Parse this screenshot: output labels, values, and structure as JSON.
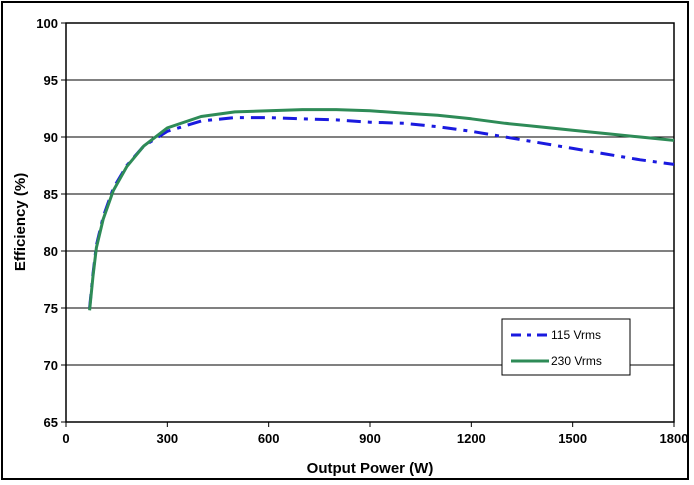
{
  "chart_data": {
    "type": "line",
    "title": "",
    "xlabel": "Output Power (W)",
    "ylabel": "Efficiency (%)",
    "xlim": [
      0,
      1800
    ],
    "ylim": [
      65,
      100
    ],
    "xticks": [
      0,
      300,
      600,
      900,
      1200,
      1500,
      1800
    ],
    "yticks": [
      65,
      70,
      75,
      80,
      85,
      90,
      95,
      100
    ],
    "x_tick_labels": [
      "0",
      "300",
      "600",
      "900",
      "1200",
      "1500",
      "1800"
    ],
    "y_tick_labels": [
      "65",
      "70",
      "75",
      "80",
      "85",
      "90",
      "95",
      "100"
    ],
    "grid": "horizontal",
    "legend_position": "bottom-right",
    "series": [
      {
        "name": "115 Vrms",
        "color": "#1a1adf",
        "style": "dash-dot",
        "points": [
          [
            70,
            75.0
          ],
          [
            80,
            78.0
          ],
          [
            90,
            80.5
          ],
          [
            110,
            83.0
          ],
          [
            140,
            85.5
          ],
          [
            180,
            87.5
          ],
          [
            230,
            89.2
          ],
          [
            300,
            90.5
          ],
          [
            400,
            91.4
          ],
          [
            500,
            91.7
          ],
          [
            600,
            91.7
          ],
          [
            700,
            91.6
          ],
          [
            800,
            91.5
          ],
          [
            900,
            91.3
          ],
          [
            1000,
            91.2
          ],
          [
            1100,
            90.9
          ],
          [
            1200,
            90.5
          ],
          [
            1300,
            90.0
          ],
          [
            1400,
            89.5
          ],
          [
            1500,
            89.0
          ],
          [
            1600,
            88.5
          ],
          [
            1700,
            88.0
          ],
          [
            1800,
            87.6
          ]
        ]
      },
      {
        "name": "230 Vrms",
        "color": "#2e8b57",
        "style": "solid",
        "points": [
          [
            70,
            74.8
          ],
          [
            80,
            77.8
          ],
          [
            90,
            80.3
          ],
          [
            110,
            82.8
          ],
          [
            140,
            85.3
          ],
          [
            180,
            87.4
          ],
          [
            230,
            89.2
          ],
          [
            300,
            90.8
          ],
          [
            400,
            91.8
          ],
          [
            500,
            92.2
          ],
          [
            600,
            92.3
          ],
          [
            700,
            92.4
          ],
          [
            800,
            92.4
          ],
          [
            900,
            92.3
          ],
          [
            1000,
            92.1
          ],
          [
            1100,
            91.9
          ],
          [
            1200,
            91.6
          ],
          [
            1300,
            91.2
          ],
          [
            1400,
            90.9
          ],
          [
            1500,
            90.6
          ],
          [
            1600,
            90.3
          ],
          [
            1700,
            90.0
          ],
          [
            1800,
            89.7
          ]
        ]
      }
    ]
  }
}
